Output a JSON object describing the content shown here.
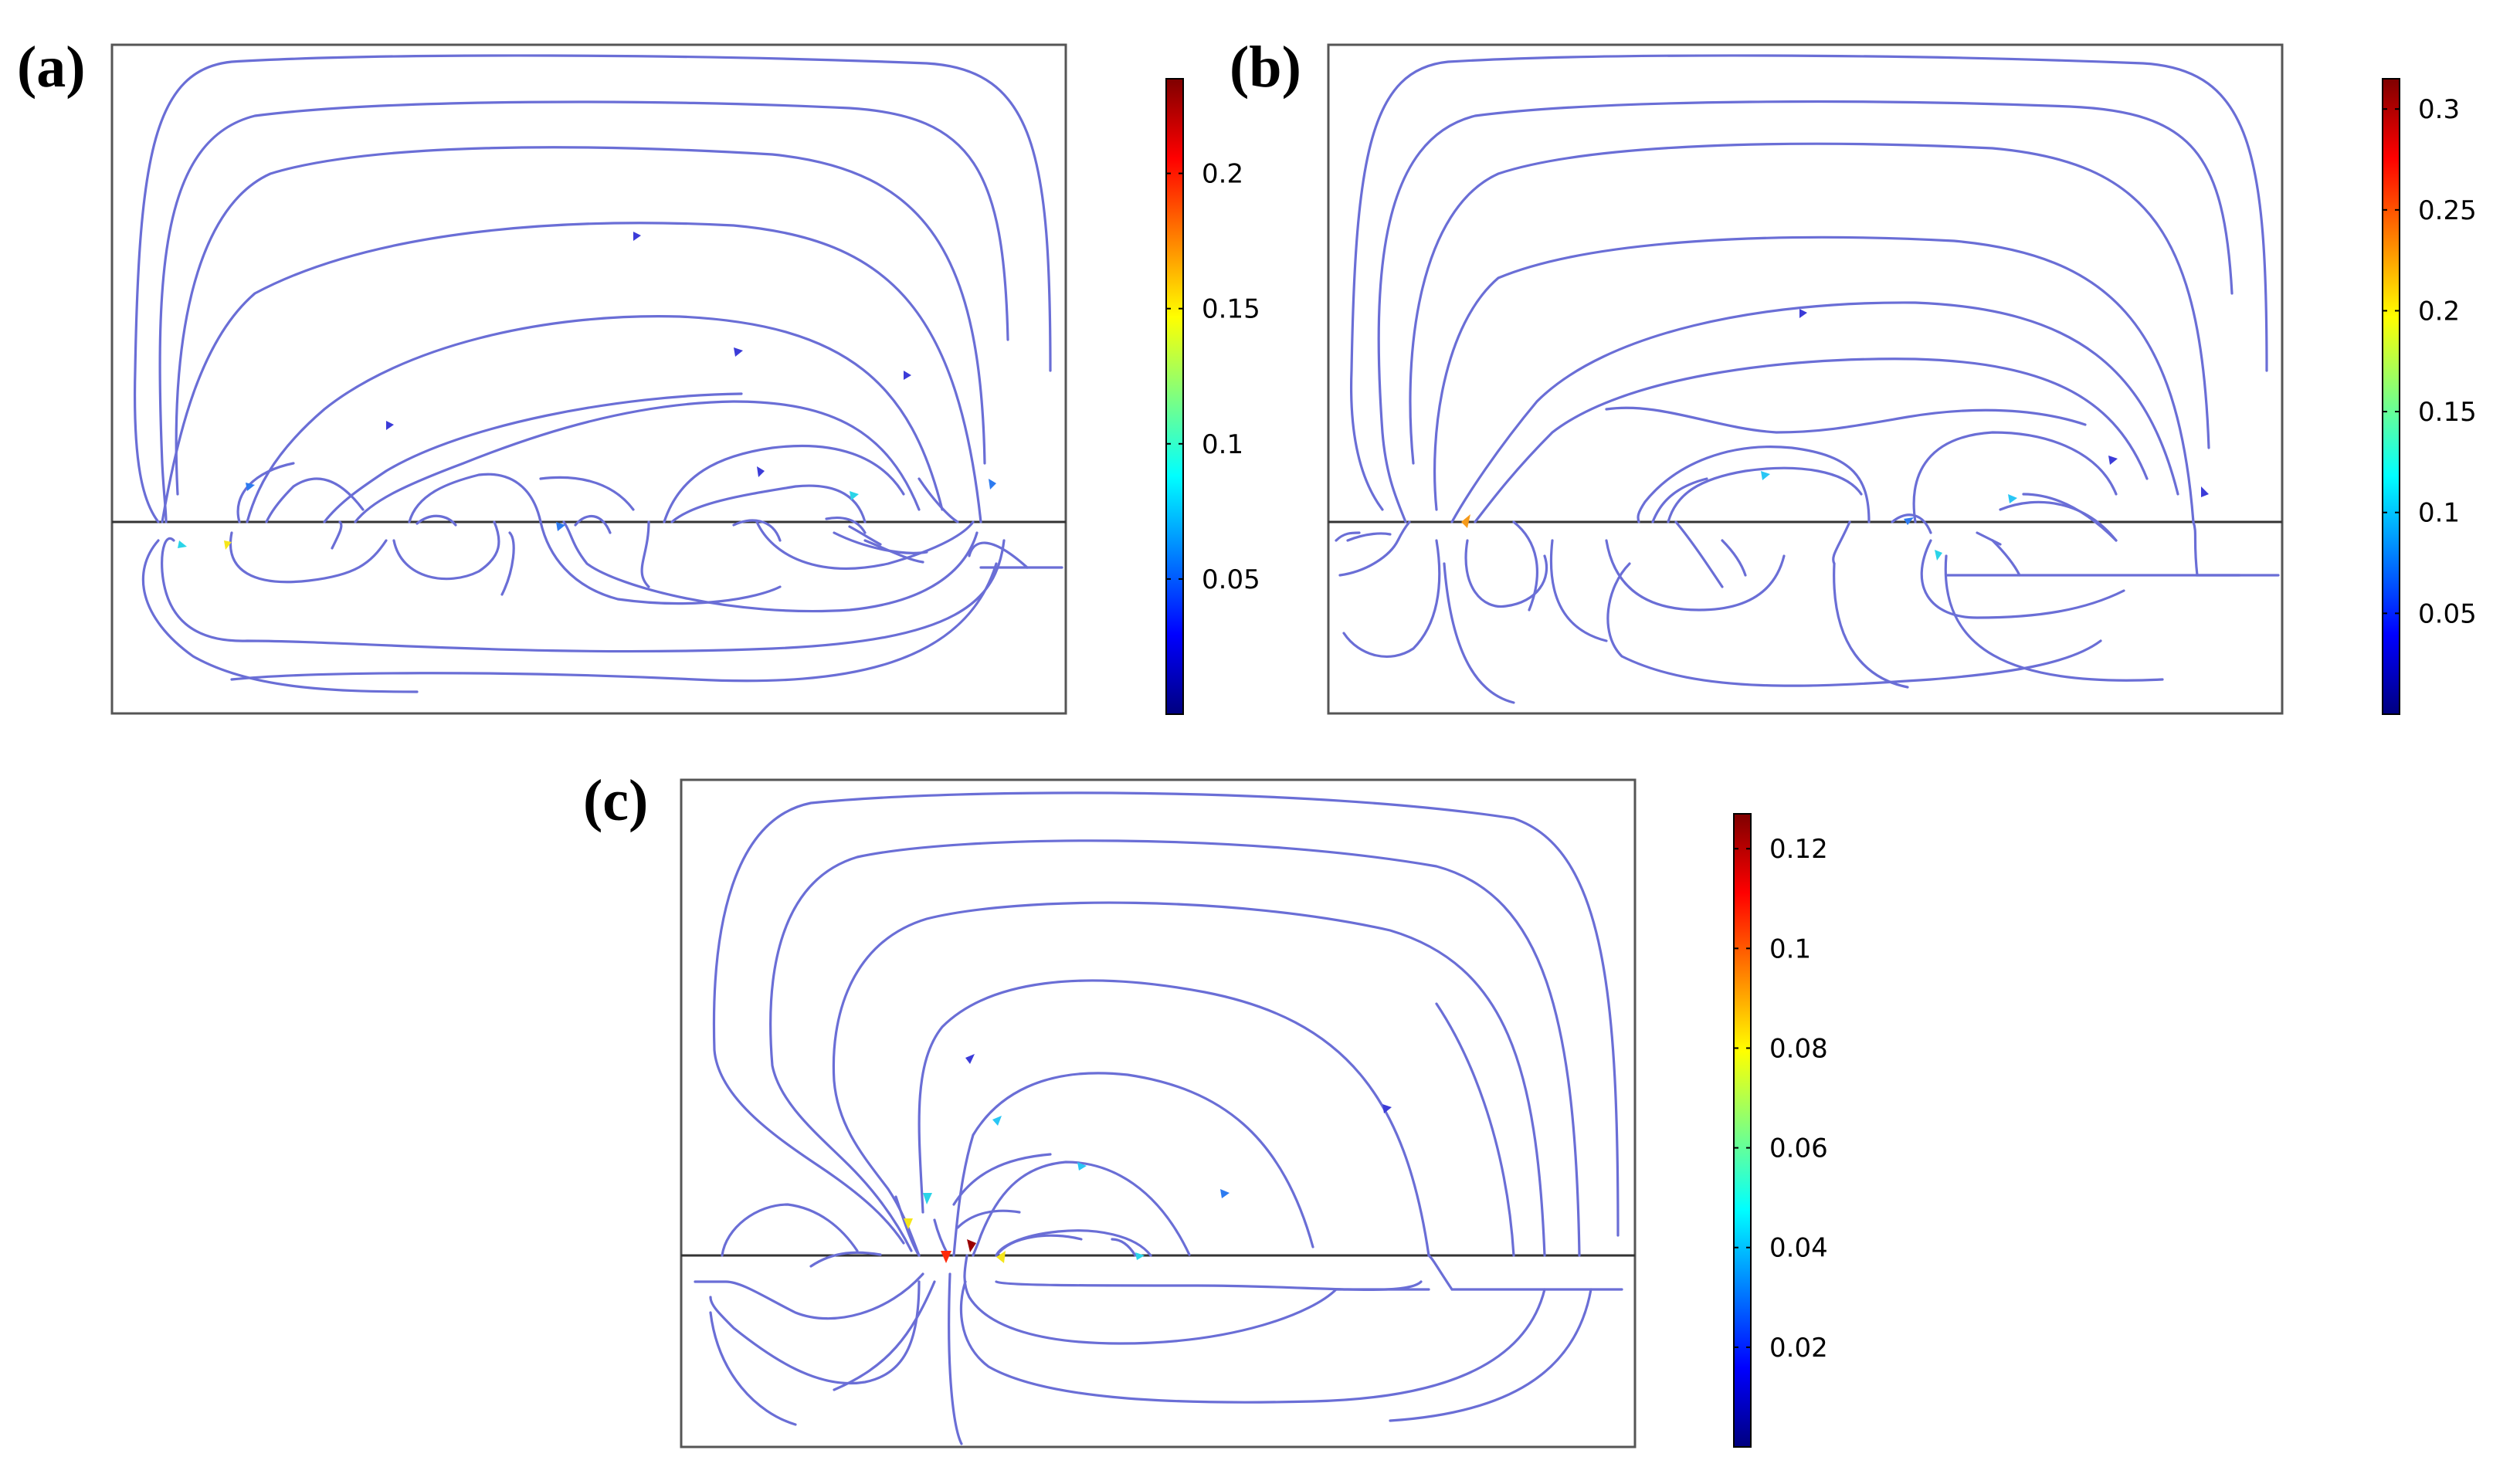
{
  "panels": [
    {
      "label": "(a)",
      "colorbar": {
        "ticks": [
          "0.05",
          "0.1",
          "0.15",
          "0.2"
        ],
        "min": 0.0,
        "max": 0.235,
        "tick_values": [
          0.05,
          0.1,
          0.15,
          0.2
        ]
      }
    },
    {
      "label": "(b)",
      "colorbar": {
        "ticks": [
          "0.05",
          "0.1",
          "0.15",
          "0.2",
          "0.25",
          "0.3"
        ],
        "min": 0.0,
        "max": 0.315,
        "tick_values": [
          0.05,
          0.1,
          0.15,
          0.2,
          0.25,
          0.3
        ]
      }
    },
    {
      "label": "(c)",
      "colorbar": {
        "ticks": [
          "0.02",
          "0.04",
          "0.06",
          "0.08",
          "0.1",
          "0.12"
        ],
        "min": 0.0,
        "max": 0.127,
        "tick_values": [
          0.02,
          0.04,
          0.06,
          0.08,
          0.1,
          0.12
        ]
      }
    }
  ],
  "colors": {
    "streamline": "#6a6ed6",
    "colormap": [
      "#00007f",
      "#0000ff",
      "#007fff",
      "#00ffff",
      "#7fff7f",
      "#ffff00",
      "#ff7f00",
      "#ff0000",
      "#7f0000"
    ]
  }
}
